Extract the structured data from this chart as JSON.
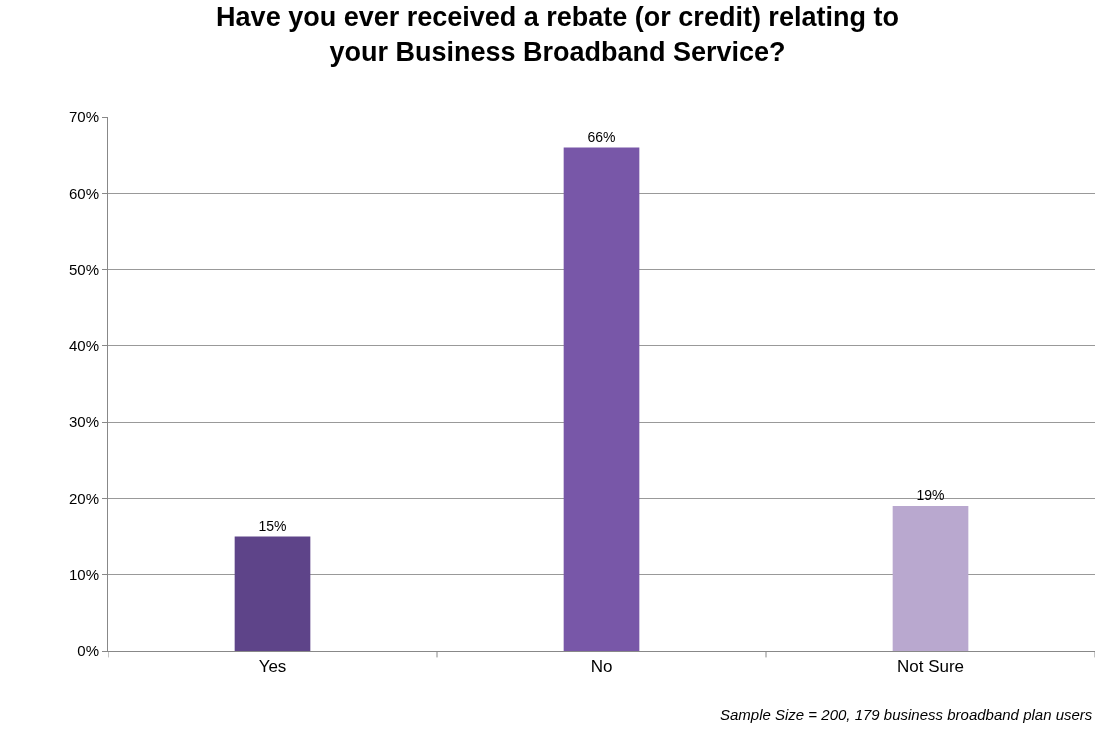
{
  "chart_data": {
    "type": "bar",
    "title": "Have you ever received a rebate (or credit) relating to\nyour Business Broadband Service?",
    "categories": [
      "Yes",
      "No",
      "Not Sure"
    ],
    "values": [
      15,
      66,
      19
    ],
    "value_labels": [
      "15%",
      "66%",
      "19%"
    ],
    "colors": [
      "#5e4489",
      "#7857a8",
      "#b9a8cf"
    ],
    "ylim": [
      0,
      70
    ],
    "yticks": [
      {
        "value": 0,
        "label": "0%"
      },
      {
        "value": 10,
        "label": "10%"
      },
      {
        "value": 20,
        "label": "20%"
      },
      {
        "value": 30,
        "label": "30%"
      },
      {
        "value": 40,
        "label": "40%"
      },
      {
        "value": 50,
        "label": "50%"
      },
      {
        "value": 60,
        "label": "60%"
      },
      {
        "value": 70,
        "label": "70%"
      }
    ],
    "grid": "y",
    "annotations": [
      "Sample Size = 200, 179 business broadband plan users"
    ]
  }
}
